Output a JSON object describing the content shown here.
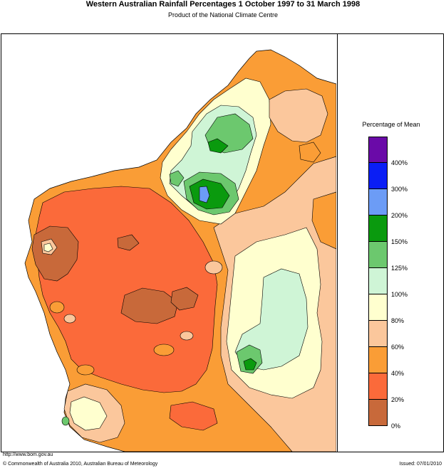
{
  "header": {
    "title": "Western Australian Rainfall Percentages 1 October 1997 to 31 March 1998",
    "subtitle": "Product of the National Climate Centre"
  },
  "legend": {
    "title": "Percentage of Mean",
    "bands": [
      {
        "color": "#6a0aa8"
      },
      {
        "color": "#0a1ef5"
      },
      {
        "color": "#6c9cf6"
      },
      {
        "color": "#0a9a0e"
      },
      {
        "color": "#6cc86e"
      },
      {
        "color": "#cff5d6"
      },
      {
        "color": "#ffffcf"
      },
      {
        "color": "#fbc79c"
      },
      {
        "color": "#fa9d36"
      },
      {
        "color": "#fb6a3a"
      },
      {
        "color": "#c8693a"
      }
    ],
    "ticks": [
      "400%",
      "300%",
      "200%",
      "150%",
      "125%",
      "100%",
      "80%",
      "60%",
      "40%",
      "20%",
      "0%"
    ]
  },
  "footer": {
    "url": "http://www.bom.gov.au",
    "copyright": "© Commonwealth of Australia 2010, Australian Bureau of Meteorology",
    "issued": "Issued: 07/01/2010"
  }
}
